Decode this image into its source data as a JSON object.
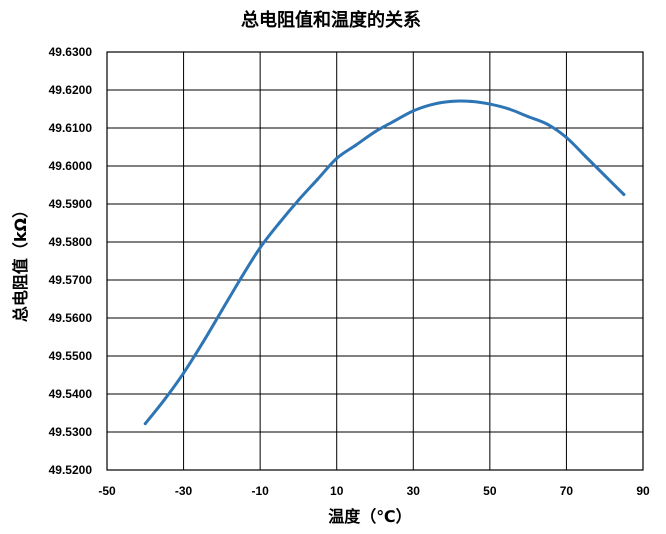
{
  "chart_data": {
    "type": "line",
    "title": "总电阻值和温度的关系",
    "xlabel": "温度（℃）",
    "ylabel": "总电阻值（kΩ）",
    "xlim": [
      -50,
      90
    ],
    "ylim": [
      49.52,
      49.63
    ],
    "x_ticks": [
      -50,
      -30,
      -10,
      10,
      30,
      50,
      70,
      90
    ],
    "x_tick_labels": [
      "-50",
      "-30",
      "-10",
      "10",
      "30",
      "50",
      "70",
      "90"
    ],
    "y_ticks": [
      49.52,
      49.53,
      49.54,
      49.55,
      49.56,
      49.57,
      49.58,
      49.59,
      49.6,
      49.61,
      49.62,
      49.63
    ],
    "y_tick_labels": [
      "49.5200",
      "49.5300",
      "49.5400",
      "49.5500",
      "49.5600",
      "49.5700",
      "49.5800",
      "49.5900",
      "49.6000",
      "49.6100",
      "49.6200",
      "49.6300"
    ],
    "grid": true,
    "legend": "none",
    "series": [
      {
        "color": "#2E75B6",
        "x": [
          -40,
          -35,
          -30,
          -25,
          -20,
          -15,
          -10,
          -5,
          0,
          5,
          10,
          15,
          20,
          25,
          30,
          35,
          40,
          45,
          50,
          55,
          60,
          65,
          70,
          75,
          80,
          85
        ],
        "y": [
          49.5322,
          49.5385,
          49.5455,
          49.5535,
          49.562,
          49.5705,
          49.5785,
          49.585,
          49.591,
          49.5965,
          49.602,
          49.6055,
          49.609,
          49.6118,
          49.6145,
          49.6162,
          49.617,
          49.617,
          49.6163,
          49.615,
          49.613,
          49.611,
          49.6075,
          49.6025,
          49.5975,
          49.5925
        ]
      }
    ]
  }
}
